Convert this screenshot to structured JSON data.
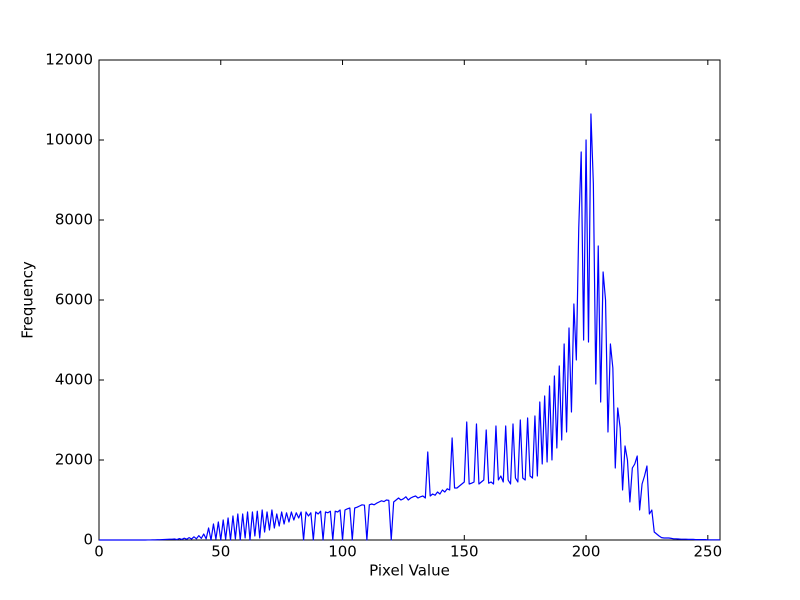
{
  "chart_data": {
    "type": "line",
    "xlabel": "Pixel Value",
    "ylabel": "Frequency",
    "x": [
      0,
      1,
      2,
      3,
      4,
      5,
      6,
      7,
      8,
      9,
      10,
      11,
      12,
      13,
      14,
      15,
      16,
      17,
      18,
      19,
      20,
      21,
      22,
      23,
      24,
      25,
      26,
      27,
      28,
      29,
      30,
      31,
      32,
      33,
      34,
      35,
      36,
      37,
      38,
      39,
      40,
      41,
      42,
      43,
      44,
      45,
      46,
      47,
      48,
      49,
      50,
      51,
      52,
      53,
      54,
      55,
      56,
      57,
      58,
      59,
      60,
      61,
      62,
      63,
      64,
      65,
      66,
      67,
      68,
      69,
      70,
      71,
      72,
      73,
      74,
      75,
      76,
      77,
      78,
      79,
      80,
      81,
      82,
      83,
      84,
      85,
      86,
      87,
      88,
      89,
      90,
      91,
      92,
      93,
      94,
      95,
      96,
      97,
      98,
      99,
      100,
      101,
      102,
      103,
      104,
      105,
      106,
      107,
      108,
      109,
      110,
      111,
      112,
      113,
      114,
      115,
      116,
      117,
      118,
      119,
      120,
      121,
      122,
      123,
      124,
      125,
      126,
      127,
      128,
      129,
      130,
      131,
      132,
      133,
      134,
      135,
      136,
      137,
      138,
      139,
      140,
      141,
      142,
      143,
      144,
      145,
      146,
      147,
      148,
      149,
      150,
      151,
      152,
      153,
      154,
      155,
      156,
      157,
      158,
      159,
      160,
      161,
      162,
      163,
      164,
      165,
      166,
      167,
      168,
      169,
      170,
      171,
      172,
      173,
      174,
      175,
      176,
      177,
      178,
      179,
      180,
      181,
      182,
      183,
      184,
      185,
      186,
      187,
      188,
      189,
      190,
      191,
      192,
      193,
      194,
      195,
      196,
      197,
      198,
      199,
      200,
      201,
      202,
      203,
      204,
      205,
      206,
      207,
      208,
      209,
      210,
      211,
      212,
      213,
      214,
      215,
      216,
      217,
      218,
      219,
      220,
      221,
      222,
      223,
      224,
      225,
      226,
      227,
      228,
      229,
      230,
      231,
      232,
      233,
      234,
      235,
      236,
      237,
      238,
      239,
      240,
      241,
      242,
      243,
      244,
      245,
      246,
      247,
      248,
      249,
      250,
      251,
      252,
      253,
      254,
      255
    ],
    "values": [
      0,
      0,
      0,
      0,
      0,
      0,
      0,
      0,
      0,
      0,
      0,
      0,
      0,
      0,
      0,
      0,
      0,
      0,
      0,
      0,
      1,
      2,
      3,
      5,
      6,
      8,
      10,
      12,
      15,
      18,
      20,
      25,
      10,
      35,
      15,
      45,
      20,
      60,
      25,
      80,
      30,
      110,
      40,
      150,
      30,
      300,
      0,
      400,
      20,
      450,
      0,
      500,
      20,
      550,
      0,
      600,
      30,
      650,
      0,
      650,
      50,
      700,
      0,
      700,
      100,
      720,
      50,
      750,
      200,
      700,
      250,
      750,
      300,
      650,
      350,
      700,
      400,
      680,
      450,
      700,
      500,
      680,
      550,
      700,
      0,
      700,
      600,
      680,
      0,
      700,
      650,
      720,
      0,
      700,
      680,
      720,
      0,
      720,
      700,
      750,
      0,
      750,
      780,
      800,
      0,
      800,
      820,
      850,
      880,
      870,
      0,
      880,
      900,
      880,
      920,
      950,
      980,
      960,
      1000,
      990,
      0,
      950,
      1000,
      1050,
      1000,
      1030,
      1080,
      1000,
      1050,
      1080,
      1100,
      1050,
      1080,
      1100,
      1050,
      2200,
      1100,
      1150,
      1120,
      1200,
      1150,
      1250,
      1200,
      1280,
      1250,
      2550,
      1300,
      1300,
      1350,
      1400,
      1450,
      2950,
      1400,
      1420,
      1450,
      2900,
      1400,
      1450,
      1500,
      2750,
      1420,
      1450,
      1400,
      2850,
      1500,
      1600,
      1450,
      2850,
      1500,
      1400,
      2900,
      1550,
      1450,
      3000,
      1550,
      1500,
      3050,
      1600,
      1550,
      3100,
      1600,
      3450,
      1900,
      3600,
      1950,
      3850,
      2000,
      4100,
      2300,
      4350,
      2500,
      4900,
      2700,
      5300,
      3200,
      5900,
      4500,
      7800,
      9700,
      5000,
      10000,
      4950,
      10650,
      8900,
      3900,
      7350,
      3450,
      6700,
      6000,
      2700,
      4900,
      4300,
      1800,
      3300,
      2800,
      1250,
      2350,
      2000,
      950,
      1800,
      1900,
      2100,
      750,
      1400,
      1600,
      1850,
      650,
      750,
      200,
      150,
      100,
      60,
      50,
      50,
      50,
      40,
      30,
      30,
      25,
      20,
      20,
      20,
      15,
      15,
      15,
      10,
      10,
      10,
      10,
      10,
      5,
      5,
      5,
      5,
      5,
      5
    ],
    "color": "#0000ff",
    "xlim": [
      0,
      255
    ],
    "xticks": [
      0,
      50,
      100,
      150,
      200,
      250
    ],
    "ylim": [
      0,
      12000
    ],
    "yticks": [
      0,
      2000,
      4000,
      6000,
      8000,
      10000,
      12000
    ]
  }
}
